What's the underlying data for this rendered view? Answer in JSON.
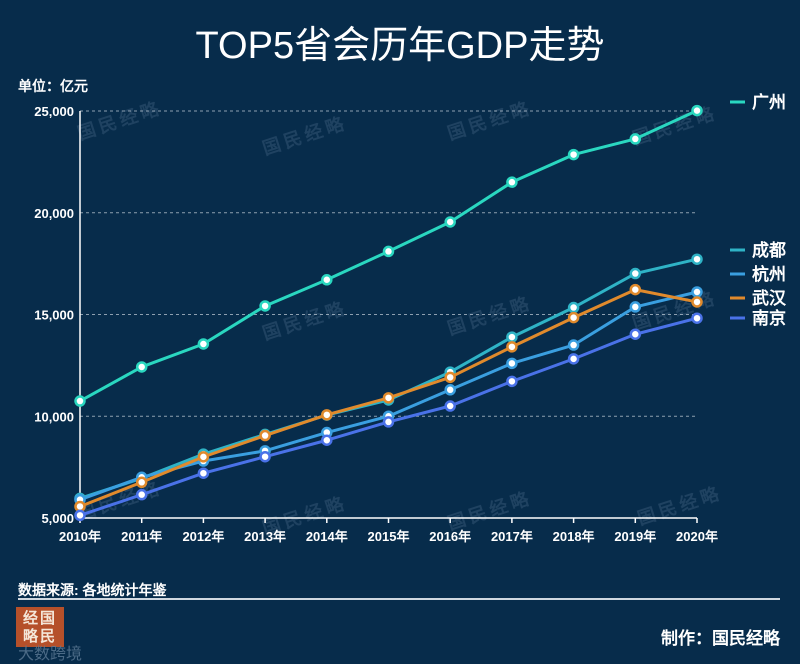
{
  "title": "TOP5省会历年GDP走势",
  "unit_label": "单位：亿元",
  "source_label": "数据来源: 各地统计年鉴",
  "credit_label": "制作：国民经略",
  "logo_text": "经国略民",
  "footer_watermark": "大数跨境",
  "watermark_text": "国民经略",
  "chart_data": {
    "type": "line",
    "title": "TOP5省会历年GDP走势",
    "ylabel": "单位：亿元",
    "ylim": [
      5000,
      25000
    ],
    "yticks": [
      5000,
      10000,
      15000,
      20000,
      25000
    ],
    "ytick_labels": [
      "5,000",
      "10,000",
      "15,000",
      "20,000",
      "25,000"
    ],
    "categories": [
      "2010年",
      "2011年",
      "2012年",
      "2013年",
      "2014年",
      "2015年",
      "2016年",
      "2017年",
      "2018年",
      "2019年",
      "2020年"
    ],
    "grid": true,
    "series": [
      {
        "name": "广州",
        "color": "#2ad7c0",
        "values": [
          10748,
          12423,
          13551,
          15420,
          16707,
          18100,
          19547,
          21503,
          22859,
          23629,
          25019
        ]
      },
      {
        "name": "成都",
        "color": "#2fb3c6",
        "values": [
          5966,
          6950,
          8139,
          9109,
          10057,
          10801,
          12170,
          13890,
          15343,
          17013,
          17717
        ]
      },
      {
        "name": "杭州",
        "color": "#3a9fe0",
        "values": [
          5900,
          7000,
          7800,
          8300,
          9200,
          10000,
          11300,
          12600,
          13500,
          15373,
          16106
        ]
      },
      {
        "name": "武汉",
        "color": "#e08a2c",
        "values": [
          5566,
          6756,
          8004,
          9051,
          10069,
          10905,
          11913,
          13410,
          14847,
          16223,
          15616
        ]
      },
      {
        "name": "南京",
        "color": "#4a72e8",
        "values": [
          5130,
          6146,
          7202,
          8012,
          8821,
          9721,
          10503,
          11715,
          12820,
          14030,
          14818
        ]
      }
    ]
  }
}
